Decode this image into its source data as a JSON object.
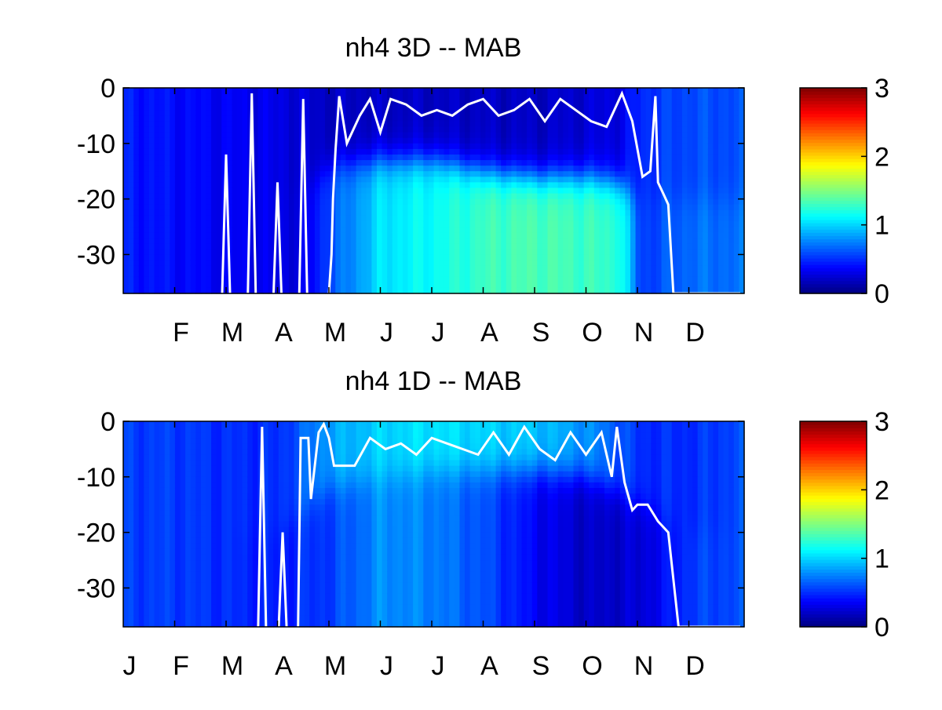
{
  "colormap": "jet",
  "background": "#ffffff",
  "line_color": "#ffffff",
  "chart_data": [
    {
      "type": "heatmap",
      "title": "nh4 3D   -- MAB",
      "xlabel": "",
      "ylabel": "",
      "x_tick_labels": [
        "F",
        "M",
        "A",
        "M",
        "J",
        "J",
        "A",
        "S",
        "O",
        "N",
        "D"
      ],
      "y_ticks": [
        0,
        -10,
        -20,
        -30
      ],
      "ylim": [
        -37,
        0
      ],
      "colorbar": {
        "ticks": [
          0,
          1,
          2,
          3
        ],
        "range": [
          0,
          3
        ]
      },
      "field_description": "depth-time field; low (~0.3) in winter, high (~1.2-1.5) below ~15 m from Jun to Oct",
      "field": {
        "months": [
          0,
          1,
          2,
          3,
          3.5,
          4,
          5,
          6,
          7,
          8,
          9,
          9.6,
          10,
          11,
          12
        ],
        "surface": [
          0.45,
          0.4,
          0.35,
          0.3,
          0.25,
          0.2,
          0.2,
          0.2,
          0.2,
          0.2,
          0.25,
          0.3,
          0.5,
          0.6,
          0.6
        ],
        "deep": [
          0.45,
          0.4,
          0.35,
          0.3,
          0.3,
          0.6,
          1.05,
          1.15,
          1.3,
          1.35,
          1.3,
          1.25,
          0.55,
          0.7,
          0.7
        ],
        "interface_depth": [
          -20,
          -20,
          -20,
          -20,
          -18,
          -14,
          -13,
          -13,
          -15,
          -16,
          -16,
          -17,
          -20,
          -20,
          -20
        ]
      },
      "mixed_layer_line": {
        "x_months": [
          4.0,
          4.05,
          4.08,
          4.13,
          4.2,
          4.35,
          4.6,
          4.8,
          5.0,
          5.2,
          5.5,
          5.8,
          6.1,
          6.4,
          6.7,
          7.0,
          7.3,
          7.6,
          7.9,
          8.2,
          8.5,
          8.8,
          9.1,
          9.4,
          9.6,
          9.7,
          9.9,
          10.1,
          10.25,
          10.35,
          10.4,
          10.5,
          10.6,
          10.7,
          10.8,
          10.9,
          11.0,
          11.1,
          11.2,
          11.3,
          11.35,
          11.4,
          11.5,
          11.6,
          11.7,
          11.8,
          11.9,
          12.0
        ],
        "y_depth": [
          -37,
          -30,
          -20,
          -11,
          -1.5,
          -10,
          -5,
          -2,
          -8,
          -2,
          -3,
          -5,
          -4,
          -5,
          -3,
          -2,
          -5,
          -4,
          -2,
          -6,
          -2,
          -4,
          -6,
          -7,
          -3,
          -1,
          -6,
          -16,
          -15,
          -1.5,
          -17,
          -19,
          -21,
          -37,
          -37,
          -37,
          -37,
          -37,
          -37,
          -37,
          -37,
          -37,
          -37,
          -37,
          -37,
          -37,
          -37,
          -37
        ]
      },
      "spikes": [
        {
          "x_month": 2.0,
          "y_top": -12
        },
        {
          "x_month": 2.5,
          "y_top": -1
        },
        {
          "x_month": 3.0,
          "y_top": -17
        },
        {
          "x_month": 3.5,
          "y_top": -2
        }
      ]
    },
    {
      "type": "heatmap",
      "title": "nh4 1D   -- MAB",
      "xlabel": "",
      "ylabel": "",
      "x_tick_labels": [
        "J",
        "F",
        "M",
        "A",
        "M",
        "J",
        "J",
        "A",
        "S",
        "O",
        "N",
        "D"
      ],
      "y_ticks": [
        0,
        -10,
        -20,
        -30
      ],
      "ylim": [
        -37,
        0
      ],
      "colorbar": {
        "ticks": [
          0,
          1,
          2,
          3
        ],
        "range": [
          0,
          3
        ]
      },
      "field_description": "depth-time field; ~0.5 in winter, ~0.9-1.1 in surface/subsurface mid-year, low (~0.2) below mixed layer in autumn",
      "field": {
        "months": [
          0,
          1,
          2,
          3,
          4,
          5,
          6,
          7,
          8,
          9,
          10,
          11,
          12
        ],
        "surface": [
          0.55,
          0.55,
          0.5,
          0.5,
          0.85,
          1.0,
          1.05,
          1.0,
          0.95,
          0.8,
          0.5,
          0.5,
          0.6
        ],
        "deep": [
          0.55,
          0.55,
          0.5,
          0.45,
          0.55,
          0.8,
          0.75,
          0.6,
          0.35,
          0.2,
          0.25,
          0.55,
          0.6
        ],
        "interface_depth": [
          -20,
          -20,
          -20,
          -20,
          -12,
          -10,
          -9,
          -9,
          -9,
          -10,
          -15,
          -20,
          -20
        ]
      },
      "mixed_layer_line": {
        "x_months": [
          3.4,
          3.45,
          3.6,
          3.65,
          3.8,
          3.9,
          4.0,
          4.1,
          4.2,
          4.5,
          4.8,
          5.1,
          5.4,
          5.7,
          6.0,
          6.3,
          6.6,
          6.9,
          7.2,
          7.5,
          7.8,
          8.1,
          8.4,
          8.7,
          9.0,
          9.3,
          9.5,
          9.6,
          9.75,
          9.9,
          10.0,
          10.2,
          10.4,
          10.6,
          10.8,
          10.9,
          11.0,
          11.2,
          11.4,
          11.6,
          11.8,
          12.0
        ],
        "y_depth": [
          -37,
          -3,
          -3,
          -14,
          -2,
          -0.5,
          -3,
          -8,
          -8,
          -8,
          -3,
          -5,
          -4,
          -6,
          -3,
          -4,
          -5,
          -6,
          -2,
          -6,
          -1,
          -5,
          -7,
          -2,
          -6,
          -2,
          -10,
          -1,
          -11,
          -16,
          -15,
          -15,
          -18,
          -20,
          -37,
          -37,
          -37,
          -37,
          -37,
          -37,
          -37,
          -37
        ]
      },
      "spikes": [
        {
          "x_month": 2.7,
          "y_top": -1
        },
        {
          "x_month": 3.1,
          "y_top": -20
        }
      ]
    }
  ]
}
